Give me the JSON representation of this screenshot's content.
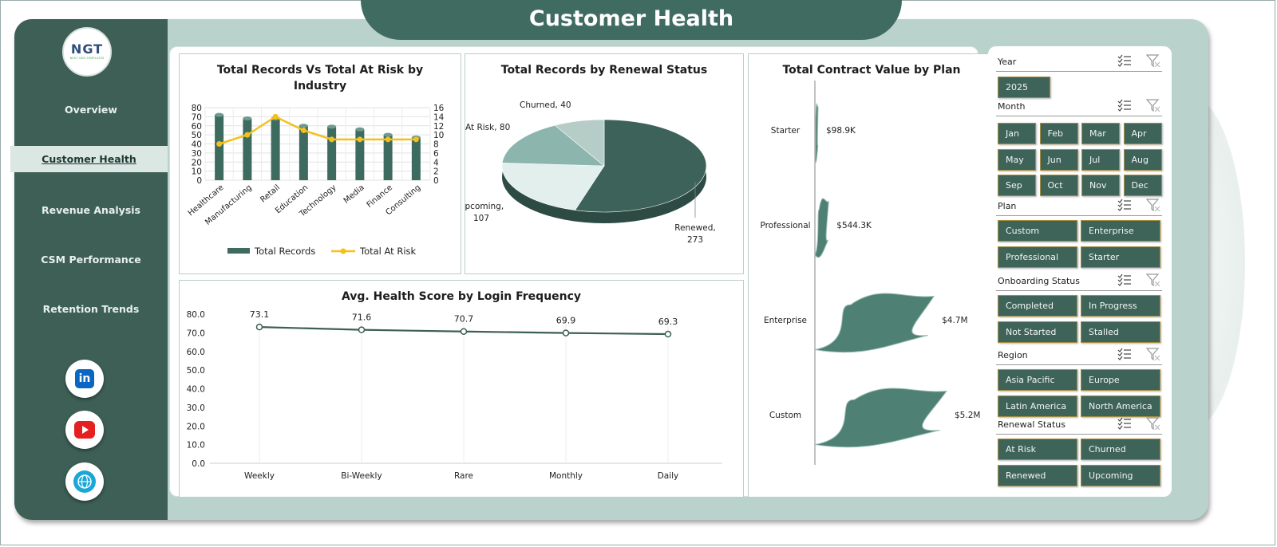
{
  "title": "Customer Health",
  "logo": {
    "text": "NGT",
    "tagline": "NEXT GEN TEMPLATES"
  },
  "nav": {
    "items": [
      "Overview",
      "Customer Health",
      "Revenue Analysis",
      "CSM Performance",
      "Retention Trends"
    ],
    "active": "Customer Health"
  },
  "social": {
    "linkedin_text": "in",
    "linkedin_color": "#0a66c2",
    "youtube_color": "#e52020",
    "web_color": "#1aa7d8"
  },
  "charts": {
    "industry": {
      "title_line1": "Total Records Vs Total At Risk by",
      "title_line2": "Industry",
      "legend": [
        "Total Records",
        "Total At Risk"
      ]
    },
    "renewal": {
      "title": "Total Records by Renewal Status"
    },
    "contract": {
      "title": "Total Contract Value by Plan"
    },
    "health": {
      "title": "Avg. Health Score by Login Frequency"
    }
  },
  "chart_data": [
    {
      "type": "bar",
      "title": "Total Records Vs Total At Risk by Industry",
      "categories": [
        "Healthcare",
        "Manufacturing",
        "Retail",
        "Education",
        "Technology",
        "Media",
        "Finance",
        "Consulting"
      ],
      "series": [
        {
          "name": "Total Records",
          "type": "bar",
          "axis": "left",
          "values": [
            72,
            68,
            68,
            60,
            59,
            56,
            50,
            47
          ]
        },
        {
          "name": "Total At Risk",
          "type": "line",
          "axis": "right",
          "values": [
            8,
            10,
            14,
            11,
            9,
            9,
            9,
            9
          ]
        }
      ],
      "ylim": [
        0,
        80
      ],
      "y_ticks": [
        0,
        10,
        20,
        30,
        40,
        50,
        60,
        70,
        80
      ],
      "y2lim": [
        0,
        16
      ],
      "y2_ticks": [
        0,
        2,
        4,
        6,
        8,
        10,
        12,
        14,
        16
      ],
      "legend": "bottom",
      "colors": {
        "bar": "#3d6b60",
        "line": "#f5c01a"
      }
    },
    {
      "type": "pie",
      "title": "Total Records by Renewal Status",
      "slices": [
        {
          "label": "Renewed",
          "value": 273,
          "color": "#3d6259"
        },
        {
          "label": "Upcoming",
          "value": 107,
          "color": "#e3efed"
        },
        {
          "label": "At Risk",
          "value": 80,
          "color": "#8cb6ad"
        },
        {
          "label": "Churned",
          "value": 40,
          "color": "#b5ccc7"
        }
      ],
      "data_labels": [
        "Churned, 40",
        "At Risk, 80",
        "Upcoming,",
        "107",
        "Renewed,",
        "273"
      ]
    },
    {
      "type": "bar",
      "orientation": "horizontal",
      "title": "Total Contract Value by Plan",
      "categories": [
        "Starter",
        "Professional",
        "Enterprise",
        "Custom"
      ],
      "values": [
        98.9,
        544.3,
        4700,
        5200
      ],
      "unit": "K",
      "data_labels": [
        "$98.9K",
        "$544.3K",
        "$4.7M",
        "$5.2M"
      ],
      "color": "#4e8074"
    },
    {
      "type": "line",
      "title": "Avg. Health Score by Login Frequency",
      "categories": [
        "Weekly",
        "Bi-Weekly",
        "Rare",
        "Monthly",
        "Daily"
      ],
      "values": [
        73.1,
        71.6,
        70.7,
        69.9,
        69.3
      ],
      "data_labels": [
        "73.1",
        "71.6",
        "70.7",
        "69.9",
        "69.3"
      ],
      "ylim": [
        0,
        80
      ],
      "y_ticks": [
        "0.0",
        "10.0",
        "20.0",
        "30.0",
        "40.0",
        "50.0",
        "60.0",
        "70.0",
        "80.0"
      ],
      "color": "#3d5f56"
    }
  ],
  "slicers": {
    "year": {
      "label": "Year",
      "options": [
        "2025"
      ]
    },
    "month": {
      "label": "Month",
      "options": [
        "Jan",
        "Feb",
        "Mar",
        "Apr",
        "May",
        "Jun",
        "Jul",
        "Aug",
        "Sep",
        "Oct",
        "Nov",
        "Dec"
      ]
    },
    "plan": {
      "label": "Plan",
      "options": [
        "Custom",
        "Enterprise",
        "Professional",
        "Starter"
      ]
    },
    "onboarding": {
      "label": "Onboarding Status",
      "options": [
        "Completed",
        "In Progress",
        "Not Started",
        "Stalled"
      ]
    },
    "region": {
      "label": "Region",
      "options": [
        "Asia Pacific",
        "Europe",
        "Latin America",
        "North America"
      ]
    },
    "renewal": {
      "label": "Renewal Status",
      "options": [
        "At Risk",
        "Churned",
        "Renewed",
        "Upcoming"
      ]
    }
  },
  "icons": {
    "multi_select": "multi-select-icon",
    "clear_filter": "clear-filter-icon"
  }
}
